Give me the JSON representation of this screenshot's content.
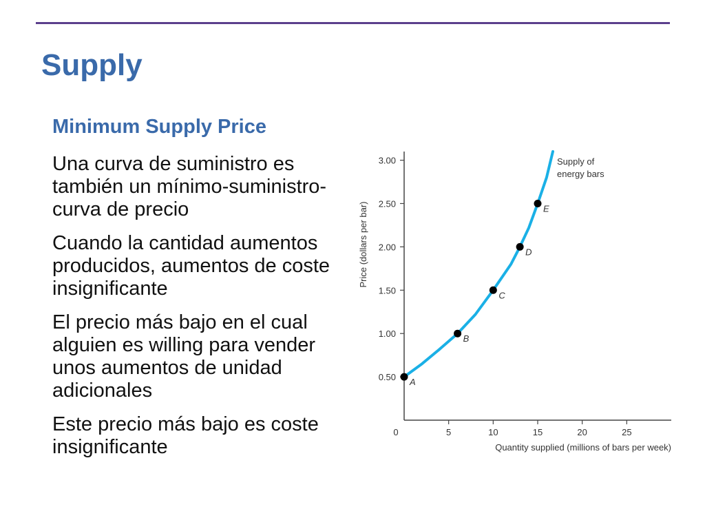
{
  "slide": {
    "title": "Supply",
    "subtitle": "Minimum Supply Price",
    "bullets": [
      "Una curva de suministro es también un mínimo-suministro-curva de precio",
      "Cuando la cantidad aumentos producidos, aumentos de coste insignificante",
      "El precio más bajo en el cual alguien es willing para vender unos aumentos de unidad adicionales",
      "Este precio más bajo es coste insignificante"
    ]
  },
  "colors": {
    "title": "#3a6aaa",
    "rule": "#5b3f8c",
    "curve": "#1ab0e6",
    "axis": "#444444"
  },
  "chart_data": {
    "type": "line",
    "xlabel": "Quantity supplied (millions of bars per week)",
    "ylabel": "Price (dollars per bar)",
    "xlim": [
      0,
      30
    ],
    "ylim": [
      0,
      3.1
    ],
    "xticks": [
      0,
      5,
      10,
      15,
      20,
      25
    ],
    "xtick_labels": [
      "0",
      "5",
      "10",
      "15",
      "20",
      "25"
    ],
    "yticks": [
      0.5,
      1.0,
      1.5,
      2.0,
      2.5,
      3.0
    ],
    "ytick_labels": [
      "0.50",
      "1.00",
      "1.50",
      "2.00",
      "2.50",
      "3.00"
    ],
    "series": [
      {
        "name": "Supply of energy bars",
        "x": [
          0,
          2,
          4,
          6,
          8,
          10,
          12,
          13,
          14,
          15,
          16,
          16.7
        ],
        "y": [
          0.5,
          0.65,
          0.82,
          1.0,
          1.22,
          1.5,
          1.8,
          2.0,
          2.22,
          2.5,
          2.8,
          3.1
        ]
      }
    ],
    "series_label_lines": [
      "Supply of",
      "energy bars"
    ],
    "points": [
      {
        "label": "A",
        "x": 0,
        "y": 0.5
      },
      {
        "label": "B",
        "x": 6,
        "y": 1.0
      },
      {
        "label": "C",
        "x": 10,
        "y": 1.5
      },
      {
        "label": "D",
        "x": 13,
        "y": 2.0
      },
      {
        "label": "E",
        "x": 15,
        "y": 2.5
      }
    ]
  }
}
